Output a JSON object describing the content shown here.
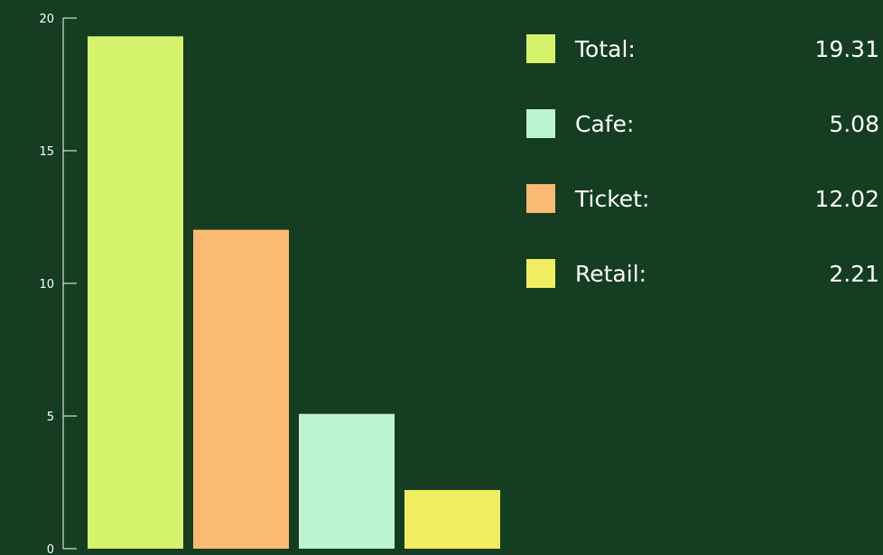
{
  "chart_data": {
    "type": "bar",
    "categories": [
      "Total",
      "Ticket",
      "Cafe",
      "Retail"
    ],
    "values": [
      19.31,
      12.02,
      5.08,
      2.21
    ],
    "colors": {
      "Total": "#d4f26b",
      "Ticket": "#fbba72",
      "Cafe": "#bdf4d0",
      "Retail": "#f0ee60"
    },
    "ylim": [
      0,
      20
    ],
    "yticks": [
      0,
      5,
      10,
      15,
      20
    ],
    "title": "",
    "xlabel": "",
    "ylabel": "",
    "grid": false,
    "background": "#143d22",
    "legend_position": "top-right",
    "legend": [
      {
        "label": "Total:",
        "value": "19.31",
        "color": "#d4f26b"
      },
      {
        "label": "Cafe:",
        "value": "5.08",
        "color": "#bdf4d0"
      },
      {
        "label": "Ticket:",
        "value": "12.02",
        "color": "#fbba72"
      },
      {
        "label": "Retail:",
        "value": "2.21",
        "color": "#f0ee60"
      }
    ]
  }
}
